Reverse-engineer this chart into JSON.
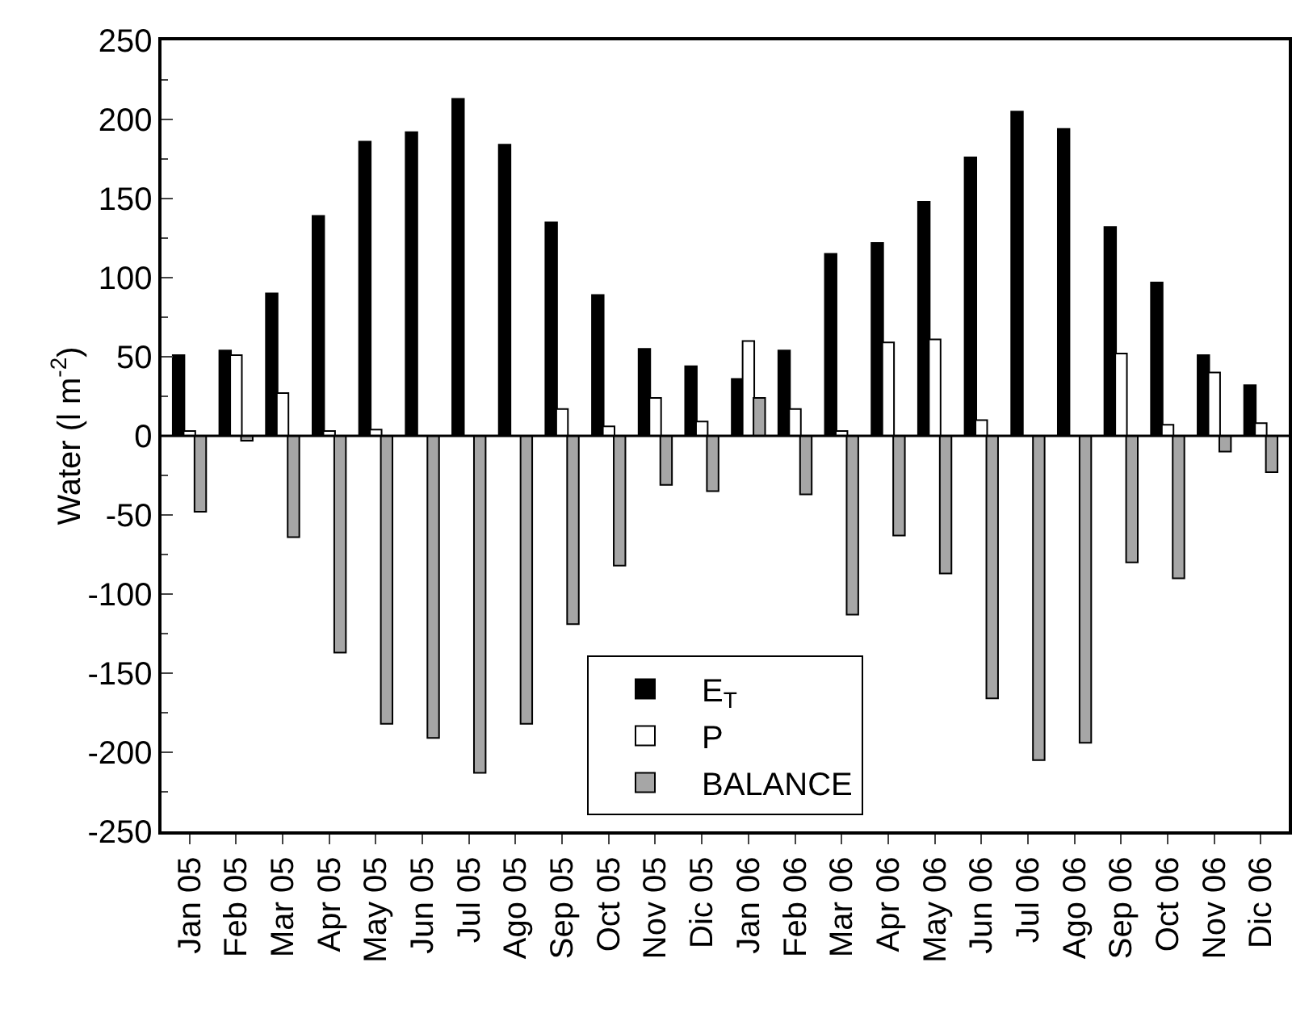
{
  "chart_data": {
    "type": "bar",
    "ylabel": "Water (l m$^{-2}$)",
    "categories": [
      "Jan 05",
      "Feb 05",
      "Mar 05",
      "Apr 05",
      "May 05",
      "Jun 05",
      "Jul 05",
      "Ago 05",
      "Sep 05",
      "Oct 05",
      "Nov 05",
      "Dic 05",
      "Jan 06",
      "Feb 06",
      "Mar 06",
      "Apr 06",
      "May 06",
      "Jun 06",
      "Jul 06",
      "Ago 06",
      "Sep 06",
      "Oct 06",
      "Nov 06",
      "Dic 06"
    ],
    "series": [
      {
        "name": "E$_{T}$",
        "color": "#000000",
        "values": [
          51,
          54,
          90,
          139,
          186,
          192,
          213,
          184,
          135,
          89,
          55,
          44,
          36,
          54,
          115,
          122,
          148,
          176,
          205,
          194,
          132,
          97,
          51,
          32
        ]
      },
      {
        "name": "P",
        "color": "#ffffff",
        "values": [
          3,
          51,
          27,
          3,
          4,
          null,
          null,
          null,
          17,
          6,
          24,
          9,
          60,
          17,
          3,
          59,
          61,
          10,
          null,
          null,
          52,
          7,
          40,
          8
        ]
      },
      {
        "name": "BALANCE",
        "color": "#a6a6a6",
        "values": [
          -48,
          -3,
          -64,
          -137,
          -182,
          -191,
          -213,
          -182,
          -119,
          -82,
          -31,
          -35,
          24,
          -37,
          -113,
          -63,
          -87,
          -166,
          -205,
          -194,
          -80,
          -90,
          -10,
          -23
        ]
      }
    ],
    "ylim": [
      -250,
      250
    ],
    "yticks": [
      -250,
      -200,
      -150,
      -100,
      -50,
      0,
      50,
      100,
      150,
      200,
      250
    ],
    "ref_lines": [
      {
        "axis": "y",
        "value": 0,
        "color": "#000000"
      }
    ],
    "grid": false,
    "legend": "bottom"
  }
}
